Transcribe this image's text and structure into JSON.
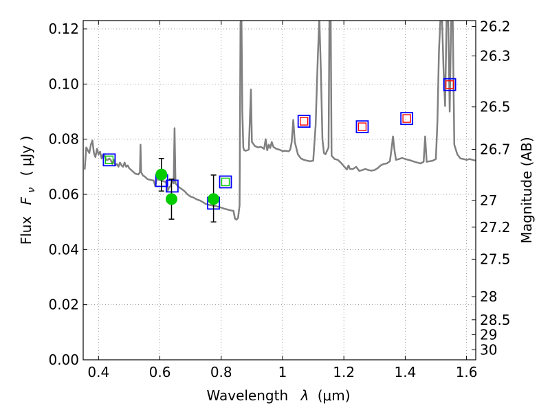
{
  "chart_data": {
    "type": "scatter",
    "xlabel_text": "Wavelength",
    "xlabel_symbol": "λ",
    "xlabel_unit": "(μm)",
    "ylabel_text": "Flux",
    "ylabel_symbol": "F",
    "ylabel_subscript": "ν",
    "ylabel_unit": "( μJy )",
    "y2label": "Magnitude (AB)",
    "xlim": [
      0.35,
      1.63
    ],
    "ylim": [
      0.0,
      0.123
    ],
    "grid": true,
    "x_ticks": [
      0.4,
      0.6,
      0.8,
      1.0,
      1.2,
      1.4,
      1.6
    ],
    "x_tick_labels": [
      "0.4",
      "0.6",
      "0.8",
      "1",
      "1.2",
      "1.4",
      "1.6"
    ],
    "y_ticks": [
      0.0,
      0.02,
      0.04,
      0.06,
      0.08,
      0.1,
      0.12
    ],
    "y_tick_labels": [
      "0.00",
      "0.02",
      "0.04",
      "0.06",
      "0.08",
      "0.10",
      "0.12"
    ],
    "y2_ticks": [
      {
        "label": "26.2",
        "flux": 0.1209
      },
      {
        "label": "26.3",
        "flux": 0.1102
      },
      {
        "label": "26.5",
        "flux": 0.0917
      },
      {
        "label": "26.7",
        "flux": 0.0763
      },
      {
        "label": "27",
        "flux": 0.0578
      },
      {
        "label": "27.2",
        "flux": 0.0481
      },
      {
        "label": "27.5",
        "flux": 0.0365
      },
      {
        "label": "28",
        "flux": 0.0229
      },
      {
        "label": "28.5",
        "flux": 0.0145
      },
      {
        "label": "29",
        "flux": 0.0091
      },
      {
        "label": "30",
        "flux": 0.0036
      }
    ],
    "colors": {
      "template": "#808080",
      "observed": "#00cc00",
      "errorbar": "#000000",
      "model_box": "#0000ff",
      "inner_red": "#ff0000",
      "inner_green": "#00cc00",
      "grid": "#888888"
    },
    "spectrum": [
      [
        0.355,
        0.069
      ],
      [
        0.36,
        0.077
      ],
      [
        0.365,
        0.076
      ],
      [
        0.37,
        0.075
      ],
      [
        0.375,
        0.078
      ],
      [
        0.38,
        0.0795
      ],
      [
        0.385,
        0.075
      ],
      [
        0.39,
        0.0735
      ],
      [
        0.395,
        0.0765
      ],
      [
        0.4,
        0.0745
      ],
      [
        0.405,
        0.0755
      ],
      [
        0.41,
        0.073
      ],
      [
        0.415,
        0.0745
      ],
      [
        0.42,
        0.074
      ],
      [
        0.425,
        0.0725
      ],
      [
        0.43,
        0.0725
      ],
      [
        0.435,
        0.073
      ],
      [
        0.44,
        0.0725
      ],
      [
        0.445,
        0.071
      ],
      [
        0.45,
        0.0725
      ],
      [
        0.455,
        0.0705
      ],
      [
        0.46,
        0.071
      ],
      [
        0.465,
        0.07
      ],
      [
        0.47,
        0.0715
      ],
      [
        0.475,
        0.0705
      ],
      [
        0.48,
        0.07
      ],
      [
        0.485,
        0.0715
      ],
      [
        0.49,
        0.07
      ],
      [
        0.495,
        0.0705
      ],
      [
        0.5,
        0.0695
      ],
      [
        0.51,
        0.0685
      ],
      [
        0.52,
        0.0675
      ],
      [
        0.53,
        0.0672
      ],
      [
        0.535,
        0.068
      ],
      [
        0.537,
        0.078
      ],
      [
        0.539,
        0.068
      ],
      [
        0.545,
        0.0668
      ],
      [
        0.55,
        0.0665
      ],
      [
        0.56,
        0.0655
      ],
      [
        0.57,
        0.0652
      ],
      [
        0.58,
        0.065
      ],
      [
        0.585,
        0.063
      ],
      [
        0.59,
        0.0655
      ],
      [
        0.6,
        0.0652
      ],
      [
        0.61,
        0.0648
      ],
      [
        0.62,
        0.0645
      ],
      [
        0.625,
        0.0612
      ],
      [
        0.63,
        0.0625
      ],
      [
        0.635,
        0.063
      ],
      [
        0.64,
        0.065
      ],
      [
        0.645,
        0.064
      ],
      [
        0.648,
        0.084
      ],
      [
        0.651,
        0.064
      ],
      [
        0.66,
        0.0628
      ],
      [
        0.67,
        0.062
      ],
      [
        0.68,
        0.0612
      ],
      [
        0.69,
        0.06
      ],
      [
        0.7,
        0.0592
      ],
      [
        0.71,
        0.0588
      ],
      [
        0.72,
        0.0582
      ],
      [
        0.73,
        0.0578
      ],
      [
        0.74,
        0.0572
      ],
      [
        0.75,
        0.0565
      ],
      [
        0.76,
        0.0562
      ],
      [
        0.77,
        0.056
      ],
      [
        0.78,
        0.0558
      ],
      [
        0.79,
        0.0555
      ],
      [
        0.8,
        0.0552
      ],
      [
        0.81,
        0.0548
      ],
      [
        0.82,
        0.0545
      ],
      [
        0.83,
        0.0542
      ],
      [
        0.84,
        0.054
      ],
      [
        0.845,
        0.0512
      ],
      [
        0.85,
        0.0508
      ],
      [
        0.855,
        0.0515
      ],
      [
        0.86,
        0.056
      ],
      [
        0.863,
        0.122
      ],
      [
        0.866,
        0.125
      ],
      [
        0.869,
        0.09
      ],
      [
        0.872,
        0.077
      ],
      [
        0.875,
        0.076
      ],
      [
        0.88,
        0.0758
      ],
      [
        0.89,
        0.0762
      ],
      [
        0.897,
        0.098
      ],
      [
        0.9,
        0.079
      ],
      [
        0.91,
        0.0775
      ],
      [
        0.92,
        0.077
      ],
      [
        0.93,
        0.0772
      ],
      [
        0.94,
        0.0765
      ],
      [
        0.945,
        0.08
      ],
      [
        0.95,
        0.076
      ],
      [
        0.955,
        0.078
      ],
      [
        0.96,
        0.0768
      ],
      [
        0.965,
        0.079
      ],
      [
        0.97,
        0.0772
      ],
      [
        0.98,
        0.0765
      ],
      [
        0.99,
        0.0762
      ],
      [
        1.0,
        0.0757
      ],
      [
        1.01,
        0.0758
      ],
      [
        1.02,
        0.0756
      ],
      [
        1.025,
        0.0762
      ],
      [
        1.03,
        0.079
      ],
      [
        1.035,
        0.087
      ],
      [
        1.04,
        0.079
      ],
      [
        1.05,
        0.0745
      ],
      [
        1.06,
        0.073
      ],
      [
        1.07,
        0.0725
      ],
      [
        1.08,
        0.0722
      ],
      [
        1.09,
        0.072
      ],
      [
        1.1,
        0.0722
      ],
      [
        1.108,
        0.085
      ],
      [
        1.115,
        0.11
      ],
      [
        1.12,
        0.124
      ],
      [
        1.125,
        0.105
      ],
      [
        1.13,
        0.08
      ],
      [
        1.135,
        0.075
      ],
      [
        1.14,
        0.0745
      ],
      [
        1.15,
        0.077
      ],
      [
        1.153,
        0.124
      ],
      [
        1.157,
        0.124
      ],
      [
        1.16,
        0.074
      ],
      [
        1.17,
        0.0728
      ],
      [
        1.18,
        0.0725
      ],
      [
        1.19,
        0.0715
      ],
      [
        1.2,
        0.0702
      ],
      [
        1.21,
        0.069
      ],
      [
        1.215,
        0.0705
      ],
      [
        1.22,
        0.0692
      ],
      [
        1.23,
        0.0692
      ],
      [
        1.24,
        0.07
      ],
      [
        1.25,
        0.0685
      ],
      [
        1.26,
        0.0688
      ],
      [
        1.27,
        0.0692
      ],
      [
        1.28,
        0.0688
      ],
      [
        1.29,
        0.0686
      ],
      [
        1.3,
        0.0688
      ],
      [
        1.31,
        0.0695
      ],
      [
        1.32,
        0.0705
      ],
      [
        1.33,
        0.071
      ],
      [
        1.34,
        0.0712
      ],
      [
        1.35,
        0.072
      ],
      [
        1.355,
        0.076
      ],
      [
        1.36,
        0.081
      ],
      [
        1.365,
        0.076
      ],
      [
        1.37,
        0.0725
      ],
      [
        1.38,
        0.0728
      ],
      [
        1.39,
        0.0732
      ],
      [
        1.4,
        0.0728
      ],
      [
        1.41,
        0.0725
      ],
      [
        1.42,
        0.0722
      ],
      [
        1.43,
        0.0718
      ],
      [
        1.44,
        0.0715
      ],
      [
        1.45,
        0.0712
      ],
      [
        1.46,
        0.0718
      ],
      [
        1.465,
        0.081
      ],
      [
        1.47,
        0.0718
      ],
      [
        1.48,
        0.072
      ],
      [
        1.49,
        0.0722
      ],
      [
        1.5,
        0.0728
      ],
      [
        1.505,
        0.086
      ],
      [
        1.51,
        0.112
      ],
      [
        1.515,
        0.124
      ],
      [
        1.52,
        0.124
      ],
      [
        1.525,
        0.105
      ],
      [
        1.53,
        0.092
      ],
      [
        1.535,
        0.124
      ],
      [
        1.54,
        0.124
      ],
      [
        1.545,
        0.09
      ],
      [
        1.55,
        0.124
      ],
      [
        1.555,
        0.124
      ],
      [
        1.56,
        0.078
      ],
      [
        1.57,
        0.0745
      ],
      [
        1.58,
        0.073
      ],
      [
        1.59,
        0.0728
      ],
      [
        1.6,
        0.0725
      ],
      [
        1.61,
        0.0728
      ],
      [
        1.62,
        0.0725
      ],
      [
        1.63,
        0.0722
      ]
    ],
    "observed": [
      {
        "x": 0.605,
        "y": 0.0672,
        "yerr_lo": 0.0612,
        "yerr_hi": 0.073
      },
      {
        "x": 0.638,
        "y": 0.0583,
        "yerr_lo": 0.051,
        "yerr_hi": 0.0655
      },
      {
        "x": 0.775,
        "y": 0.0583,
        "yerr_lo": 0.05,
        "yerr_hi": 0.067
      }
    ],
    "model_boxes": [
      {
        "x": 0.435,
        "y": 0.0725,
        "inner": "green"
      },
      {
        "x": 0.606,
        "y": 0.065,
        "inner": "none"
      },
      {
        "x": 0.64,
        "y": 0.063,
        "inner": "none"
      },
      {
        "x": 0.775,
        "y": 0.0568,
        "inner": "none"
      },
      {
        "x": 0.814,
        "y": 0.0645,
        "inner": "green"
      },
      {
        "x": 1.07,
        "y": 0.0865,
        "inner": "red"
      },
      {
        "x": 1.26,
        "y": 0.0845,
        "inner": "red"
      },
      {
        "x": 1.405,
        "y": 0.0875,
        "inner": "red"
      },
      {
        "x": 1.545,
        "y": 0.0998,
        "inner": "red"
      }
    ]
  }
}
